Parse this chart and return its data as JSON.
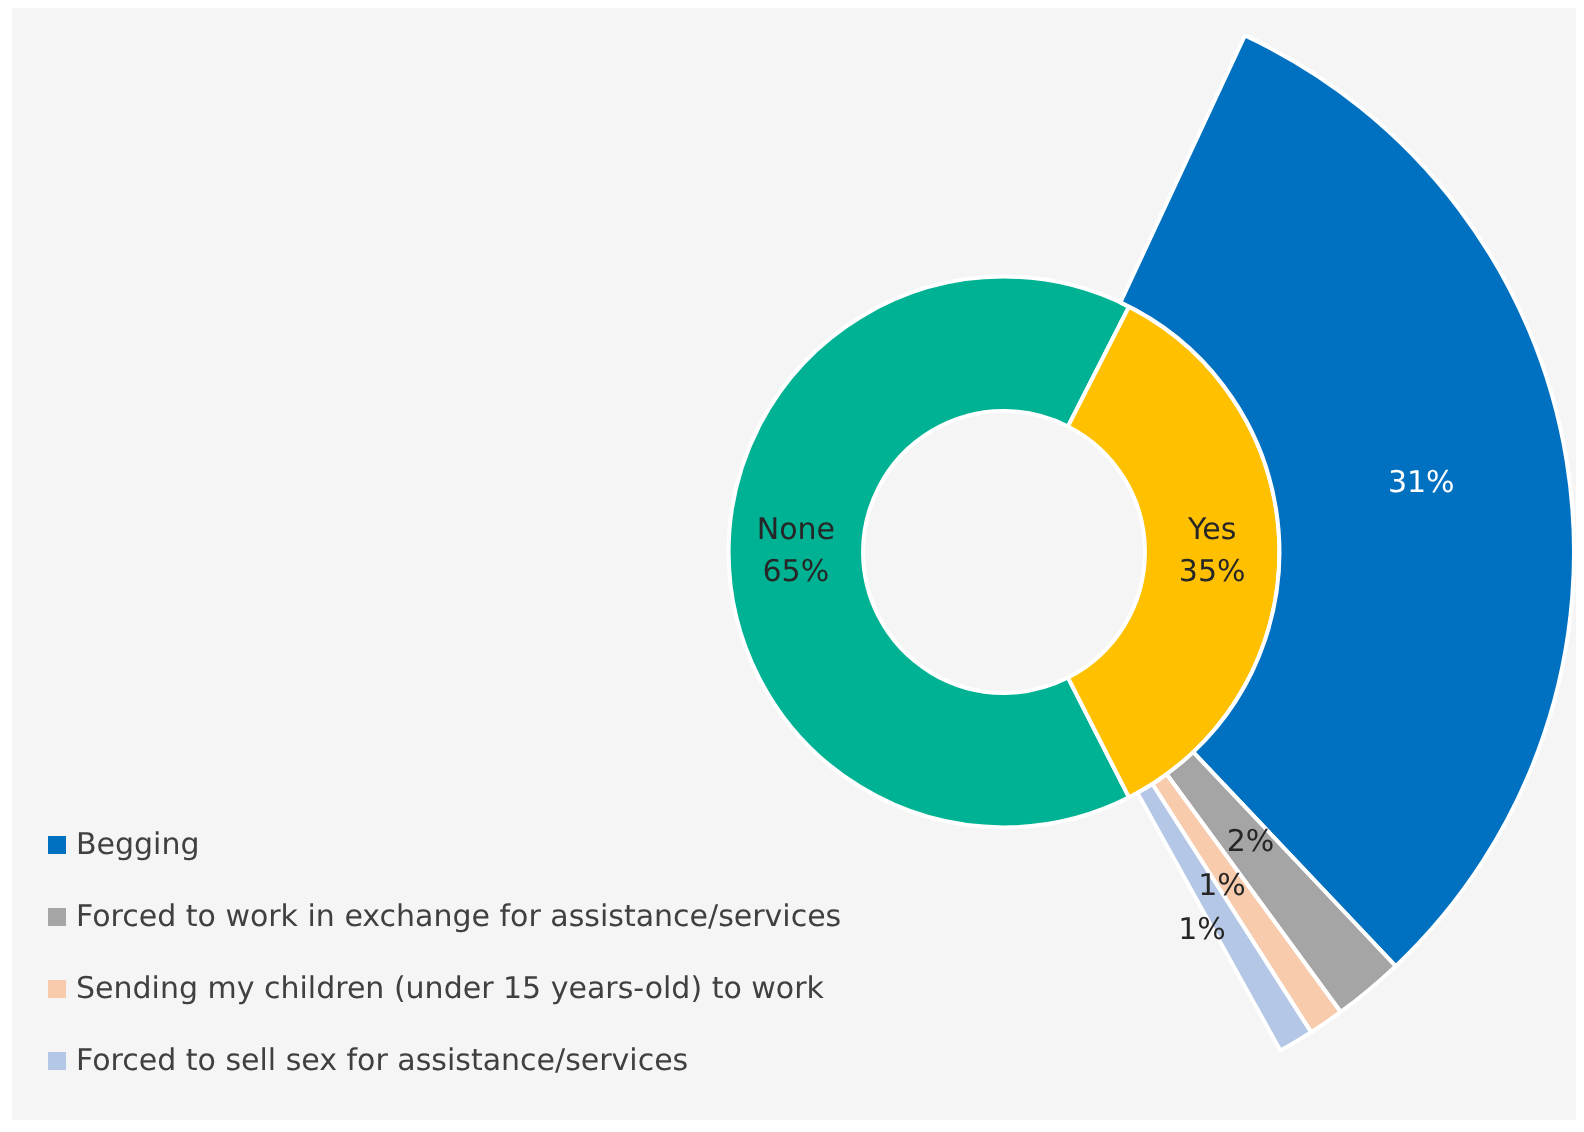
{
  "chart_data": {
    "type": "donut",
    "categories": [
      "None",
      "Yes",
      "Begging",
      "Forced to work in exchange for assistance/services",
      "Sending my children (under 15 years-old) to work",
      "Forced to sell sex for assistance/services"
    ],
    "legend": "bottom left",
    "series": [
      {
        "values": [
          65,
          35,
          null,
          null,
          null,
          null
        ],
        "colors": [
          "#00b294",
          "#ffc000",
          null,
          null,
          null,
          null
        ],
        "value_labels": [
          "65%",
          "35%",
          null,
          null,
          null,
          null
        ]
      },
      {
        "values": [
          null,
          null,
          31,
          2,
          1,
          1
        ],
        "colors": [
          null,
          null,
          "#0070c0",
          "#a5a5a5",
          "#f8cbad",
          "#b4c7e7"
        ],
        "value_labels": [
          null,
          null,
          "31%",
          "2%",
          "1%",
          "1%"
        ]
      }
    ]
  }
}
